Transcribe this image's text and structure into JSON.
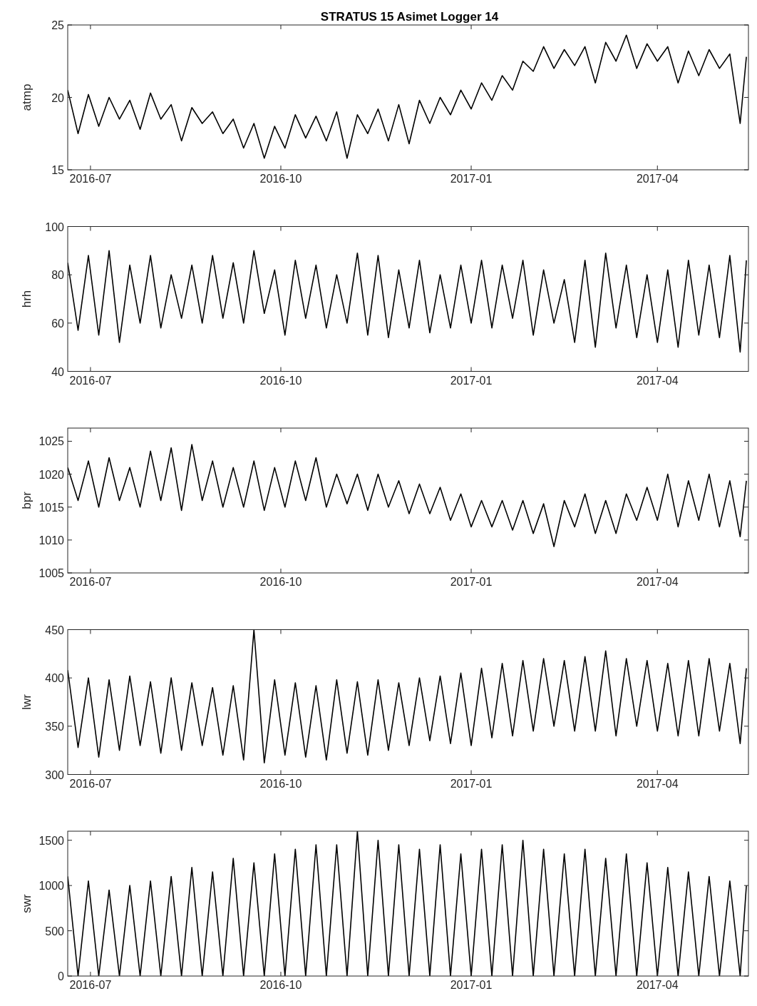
{
  "chart_data": [
    {
      "type": "line",
      "title": "STRATUS 15 Asimet Logger 14",
      "ylabel": "atmp",
      "xlim": [
        "2016-06-20",
        "2017-05-15"
      ],
      "xticks": [
        {
          "value": "2016-07-01",
          "label": "2016-07"
        },
        {
          "value": "2016-10-01",
          "label": "2016-10"
        },
        {
          "value": "2017-01-01",
          "label": "2017-01"
        },
        {
          "value": "2017-04-01",
          "label": "2017-04"
        }
      ],
      "ylim": [
        15,
        25
      ],
      "yticks": [
        15,
        20,
        25
      ],
      "x": [
        "2016-06-20",
        "2016-06-25",
        "2016-06-30",
        "2016-07-05",
        "2016-07-10",
        "2016-07-15",
        "2016-07-20",
        "2016-07-25",
        "2016-07-30",
        "2016-08-04",
        "2016-08-09",
        "2016-08-14",
        "2016-08-19",
        "2016-08-24",
        "2016-08-29",
        "2016-09-03",
        "2016-09-08",
        "2016-09-13",
        "2016-09-18",
        "2016-09-23",
        "2016-09-28",
        "2016-10-03",
        "2016-10-08",
        "2016-10-13",
        "2016-10-18",
        "2016-10-23",
        "2016-10-28",
        "2016-11-02",
        "2016-11-07",
        "2016-11-12",
        "2016-11-17",
        "2016-11-22",
        "2016-11-27",
        "2016-12-02",
        "2016-12-07",
        "2016-12-12",
        "2016-12-17",
        "2016-12-22",
        "2016-12-27",
        "2017-01-01",
        "2017-01-06",
        "2017-01-11",
        "2017-01-16",
        "2017-01-21",
        "2017-01-26",
        "2017-01-31",
        "2017-02-05",
        "2017-02-10",
        "2017-02-15",
        "2017-02-20",
        "2017-02-25",
        "2017-03-02",
        "2017-03-07",
        "2017-03-12",
        "2017-03-17",
        "2017-03-22",
        "2017-03-27",
        "2017-04-01",
        "2017-04-06",
        "2017-04-11",
        "2017-04-16",
        "2017-04-21",
        "2017-04-26",
        "2017-05-01",
        "2017-05-06",
        "2017-05-11",
        "2017-05-14"
      ],
      "series": [
        {
          "color": "#000000",
          "values": [
            20.5,
            17.5,
            20.2,
            18.0,
            20.0,
            18.5,
            19.8,
            17.8,
            20.3,
            18.5,
            19.5,
            17.0,
            19.3,
            18.2,
            19.0,
            17.5,
            18.5,
            16.5,
            18.2,
            15.8,
            18.0,
            16.5,
            18.8,
            17.2,
            18.7,
            17.0,
            19.0,
            15.8,
            18.8,
            17.5,
            19.2,
            17.0,
            19.5,
            16.8,
            19.8,
            18.2,
            20.0,
            18.8,
            20.5,
            19.2,
            21.0,
            19.8,
            21.5,
            20.5,
            22.5,
            21.8,
            23.5,
            22.0,
            23.3,
            22.2,
            23.5,
            21.0,
            23.8,
            22.5,
            24.3,
            22.0,
            23.7,
            22.5,
            23.5,
            21.0,
            23.2,
            21.5,
            23.3,
            22.0,
            23.0,
            18.2,
            22.8
          ]
        }
      ]
    },
    {
      "type": "line",
      "ylabel": "hrh",
      "xlim": [
        "2016-06-20",
        "2017-05-15"
      ],
      "xticks": [
        {
          "value": "2016-07-01",
          "label": "2016-07"
        },
        {
          "value": "2016-10-01",
          "label": "2016-10"
        },
        {
          "value": "2017-01-01",
          "label": "2017-01"
        },
        {
          "value": "2017-04-01",
          "label": "2017-04"
        }
      ],
      "ylim": [
        40,
        100
      ],
      "yticks": [
        40,
        60,
        80,
        100
      ],
      "x": [
        "2016-06-20",
        "2016-06-25",
        "2016-06-30",
        "2016-07-05",
        "2016-07-10",
        "2016-07-15",
        "2016-07-20",
        "2016-07-25",
        "2016-07-30",
        "2016-08-04",
        "2016-08-09",
        "2016-08-14",
        "2016-08-19",
        "2016-08-24",
        "2016-08-29",
        "2016-09-03",
        "2016-09-08",
        "2016-09-13",
        "2016-09-18",
        "2016-09-23",
        "2016-09-28",
        "2016-10-03",
        "2016-10-08",
        "2016-10-13",
        "2016-10-18",
        "2016-10-23",
        "2016-10-28",
        "2016-11-02",
        "2016-11-07",
        "2016-11-12",
        "2016-11-17",
        "2016-11-22",
        "2016-11-27",
        "2016-12-02",
        "2016-12-07",
        "2016-12-12",
        "2016-12-17",
        "2016-12-22",
        "2016-12-27",
        "2017-01-01",
        "2017-01-06",
        "2017-01-11",
        "2017-01-16",
        "2017-01-21",
        "2017-01-26",
        "2017-01-31",
        "2017-02-05",
        "2017-02-10",
        "2017-02-15",
        "2017-02-20",
        "2017-02-25",
        "2017-03-02",
        "2017-03-07",
        "2017-03-12",
        "2017-03-17",
        "2017-03-22",
        "2017-03-27",
        "2017-04-01",
        "2017-04-06",
        "2017-04-11",
        "2017-04-16",
        "2017-04-21",
        "2017-04-26",
        "2017-05-01",
        "2017-05-06",
        "2017-05-11",
        "2017-05-14"
      ],
      "series": [
        {
          "color": "#000000",
          "values": [
            85,
            57,
            88,
            55,
            90,
            52,
            84,
            60,
            88,
            58,
            80,
            62,
            84,
            60,
            88,
            62,
            85,
            60,
            90,
            64,
            82,
            55,
            86,
            62,
            84,
            58,
            80,
            60,
            89,
            55,
            88,
            54,
            82,
            58,
            86,
            56,
            80,
            58,
            84,
            60,
            86,
            58,
            84,
            62,
            86,
            55,
            82,
            60,
            78,
            52,
            86,
            50,
            89,
            58,
            84,
            54,
            80,
            52,
            82,
            50,
            86,
            55,
            84,
            54,
            88,
            48,
            86
          ]
        }
      ]
    },
    {
      "type": "line",
      "ylabel": "bpr",
      "xlim": [
        "2016-06-20",
        "2017-05-15"
      ],
      "xticks": [
        {
          "value": "2016-07-01",
          "label": "2016-07"
        },
        {
          "value": "2016-10-01",
          "label": "2016-10"
        },
        {
          "value": "2017-01-01",
          "label": "2017-01"
        },
        {
          "value": "2017-04-01",
          "label": "2017-04"
        }
      ],
      "ylim": [
        1005,
        1027
      ],
      "yticks": [
        1005,
        1010,
        1015,
        1020,
        1025
      ],
      "x": [
        "2016-06-20",
        "2016-06-25",
        "2016-06-30",
        "2016-07-05",
        "2016-07-10",
        "2016-07-15",
        "2016-07-20",
        "2016-07-25",
        "2016-07-30",
        "2016-08-04",
        "2016-08-09",
        "2016-08-14",
        "2016-08-19",
        "2016-08-24",
        "2016-08-29",
        "2016-09-03",
        "2016-09-08",
        "2016-09-13",
        "2016-09-18",
        "2016-09-23",
        "2016-09-28",
        "2016-10-03",
        "2016-10-08",
        "2016-10-13",
        "2016-10-18",
        "2016-10-23",
        "2016-10-28",
        "2016-11-02",
        "2016-11-07",
        "2016-11-12",
        "2016-11-17",
        "2016-11-22",
        "2016-11-27",
        "2016-12-02",
        "2016-12-07",
        "2016-12-12",
        "2016-12-17",
        "2016-12-22",
        "2016-12-27",
        "2017-01-01",
        "2017-01-06",
        "2017-01-11",
        "2017-01-16",
        "2017-01-21",
        "2017-01-26",
        "2017-01-31",
        "2017-02-05",
        "2017-02-10",
        "2017-02-15",
        "2017-02-20",
        "2017-02-25",
        "2017-03-02",
        "2017-03-07",
        "2017-03-12",
        "2017-03-17",
        "2017-03-22",
        "2017-03-27",
        "2017-04-01",
        "2017-04-06",
        "2017-04-11",
        "2017-04-16",
        "2017-04-21",
        "2017-04-26",
        "2017-05-01",
        "2017-05-06",
        "2017-05-11",
        "2017-05-14"
      ],
      "series": [
        {
          "color": "#000000",
          "values": [
            1021,
            1016,
            1022,
            1015,
            1022.5,
            1016,
            1021,
            1015,
            1023.5,
            1016,
            1024,
            1014.5,
            1024.5,
            1016,
            1022,
            1015,
            1021,
            1015,
            1022,
            1014.5,
            1021,
            1015,
            1022,
            1016,
            1022.5,
            1015,
            1020,
            1015.5,
            1020,
            1014.5,
            1020,
            1015,
            1019,
            1014,
            1018.5,
            1014,
            1018,
            1013,
            1017,
            1012,
            1016,
            1012,
            1016,
            1011.5,
            1016,
            1011,
            1015.5,
            1009,
            1016,
            1012,
            1017,
            1011,
            1016,
            1011,
            1017,
            1013,
            1018,
            1013,
            1020,
            1012,
            1019,
            1013,
            1020,
            1012,
            1019,
            1010.5,
            1019
          ]
        }
      ]
    },
    {
      "type": "line",
      "ylabel": "lwr",
      "xlim": [
        "2016-06-20",
        "2017-05-15"
      ],
      "xticks": [
        {
          "value": "2016-07-01",
          "label": "2016-07"
        },
        {
          "value": "2016-10-01",
          "label": "2016-10"
        },
        {
          "value": "2017-01-01",
          "label": "2017-01"
        },
        {
          "value": "2017-04-01",
          "label": "2017-04"
        }
      ],
      "ylim": [
        300,
        450
      ],
      "yticks": [
        300,
        350,
        400,
        450
      ],
      "x": [
        "2016-06-20",
        "2016-06-25",
        "2016-06-30",
        "2016-07-05",
        "2016-07-10",
        "2016-07-15",
        "2016-07-20",
        "2016-07-25",
        "2016-07-30",
        "2016-08-04",
        "2016-08-09",
        "2016-08-14",
        "2016-08-19",
        "2016-08-24",
        "2016-08-29",
        "2016-09-03",
        "2016-09-08",
        "2016-09-13",
        "2016-09-18",
        "2016-09-23",
        "2016-09-28",
        "2016-10-03",
        "2016-10-08",
        "2016-10-13",
        "2016-10-18",
        "2016-10-23",
        "2016-10-28",
        "2016-11-02",
        "2016-11-07",
        "2016-11-12",
        "2016-11-17",
        "2016-11-22",
        "2016-11-27",
        "2016-12-02",
        "2016-12-07",
        "2016-12-12",
        "2016-12-17",
        "2016-12-22",
        "2016-12-27",
        "2017-01-01",
        "2017-01-06",
        "2017-01-11",
        "2017-01-16",
        "2017-01-21",
        "2017-01-26",
        "2017-01-31",
        "2017-02-05",
        "2017-02-10",
        "2017-02-15",
        "2017-02-20",
        "2017-02-25",
        "2017-03-02",
        "2017-03-07",
        "2017-03-12",
        "2017-03-17",
        "2017-03-22",
        "2017-03-27",
        "2017-04-01",
        "2017-04-06",
        "2017-04-11",
        "2017-04-16",
        "2017-04-21",
        "2017-04-26",
        "2017-05-01",
        "2017-05-06",
        "2017-05-11",
        "2017-05-14"
      ],
      "series": [
        {
          "color": "#000000",
          "values": [
            408,
            328,
            400,
            318,
            398,
            325,
            402,
            330,
            396,
            322,
            400,
            325,
            395,
            330,
            390,
            320,
            392,
            315,
            450,
            312,
            398,
            320,
            395,
            318,
            392,
            315,
            398,
            322,
            396,
            320,
            398,
            325,
            395,
            330,
            400,
            335,
            402,
            332,
            405,
            330,
            410,
            338,
            415,
            340,
            418,
            345,
            420,
            350,
            418,
            345,
            422,
            345,
            428,
            340,
            420,
            350,
            418,
            345,
            415,
            340,
            418,
            340,
            420,
            345,
            415,
            332,
            410
          ]
        }
      ]
    },
    {
      "type": "line",
      "ylabel": "swr",
      "xlim": [
        "2016-06-20",
        "2017-05-15"
      ],
      "xticks": [
        {
          "value": "2016-07-01",
          "label": "2016-07"
        },
        {
          "value": "2016-10-01",
          "label": "2016-10"
        },
        {
          "value": "2017-01-01",
          "label": "2017-01"
        },
        {
          "value": "2017-04-01",
          "label": "2017-04"
        }
      ],
      "ylim": [
        0,
        1600
      ],
      "yticks": [
        0,
        500,
        1000,
        1500
      ],
      "x": [
        "2016-06-20",
        "2016-06-25",
        "2016-06-30",
        "2016-07-05",
        "2016-07-10",
        "2016-07-15",
        "2016-07-20",
        "2016-07-25",
        "2016-07-30",
        "2016-08-04",
        "2016-08-09",
        "2016-08-14",
        "2016-08-19",
        "2016-08-24",
        "2016-08-29",
        "2016-09-03",
        "2016-09-08",
        "2016-09-13",
        "2016-09-18",
        "2016-09-23",
        "2016-09-28",
        "2016-10-03",
        "2016-10-08",
        "2016-10-13",
        "2016-10-18",
        "2016-10-23",
        "2016-10-28",
        "2016-11-02",
        "2016-11-07",
        "2016-11-12",
        "2016-11-17",
        "2016-11-22",
        "2016-11-27",
        "2016-12-02",
        "2016-12-07",
        "2016-12-12",
        "2016-12-17",
        "2016-12-22",
        "2016-12-27",
        "2017-01-01",
        "2017-01-06",
        "2017-01-11",
        "2017-01-16",
        "2017-01-21",
        "2017-01-26",
        "2017-01-31",
        "2017-02-05",
        "2017-02-10",
        "2017-02-15",
        "2017-02-20",
        "2017-02-25",
        "2017-03-02",
        "2017-03-07",
        "2017-03-12",
        "2017-03-17",
        "2017-03-22",
        "2017-03-27",
        "2017-04-01",
        "2017-04-06",
        "2017-04-11",
        "2017-04-16",
        "2017-04-21",
        "2017-04-26",
        "2017-05-01",
        "2017-05-06",
        "2017-05-11",
        "2017-05-14"
      ],
      "series": [
        {
          "color": "#000000",
          "values": [
            1100,
            0,
            1050,
            0,
            950,
            0,
            1000,
            0,
            1050,
            0,
            1100,
            0,
            1200,
            0,
            1150,
            0,
            1300,
            0,
            1250,
            0,
            1350,
            0,
            1400,
            0,
            1450,
            0,
            1450,
            0,
            1600,
            0,
            1500,
            0,
            1450,
            0,
            1400,
            0,
            1450,
            0,
            1350,
            0,
            1400,
            0,
            1450,
            0,
            1500,
            0,
            1400,
            0,
            1350,
            0,
            1400,
            0,
            1300,
            0,
            1350,
            0,
            1250,
            0,
            1200,
            0,
            1150,
            0,
            1100,
            0,
            1050,
            0,
            1000
          ]
        }
      ]
    }
  ]
}
